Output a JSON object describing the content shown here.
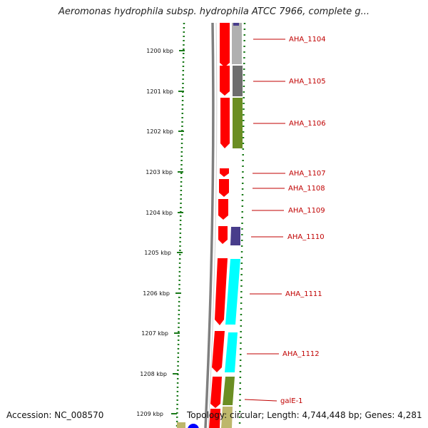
{
  "header": {
    "title": "Aeromonas hydrophila subsp. hydrophila ATCC 7966, complete g..."
  },
  "footer": {
    "accession": "Accession: NC_008570",
    "topology": "Topology: circular; Length: 4,744,448 bp; Genes: 4,281"
  },
  "map": {
    "ticks": [
      "1200 kbp",
      "1201 kbp",
      "1202 kbp",
      "1203 kbp",
      "1204 kbp",
      "1205 kbp",
      "1206 kbp",
      "1207 kbp",
      "1208 kbp",
      "1209 kbp"
    ],
    "gene_labels": [
      "AHA_1104",
      "AHA_1105",
      "AHA_1106",
      "AHA_1107",
      "AHA_1108",
      "AHA_1109",
      "AHA_1110",
      "AHA_1111",
      "AHA_1112",
      "galE-1"
    ],
    "colors": {
      "backbone": "#7f7f7f",
      "tick": "#1a7a1a",
      "forward_gene": "#ff0000",
      "label_line": "#c00000",
      "label_text": "#c00000",
      "cog_gray_light": "#b0b0b0",
      "cog_gray_dark": "#6e6e6e",
      "cog_olive": "#6b8e23",
      "cog_slate": "#483d8b",
      "cog_cyan": "#00ffff",
      "cog_khaki": "#bdb76b",
      "blue_marker": "#0000ff"
    }
  }
}
